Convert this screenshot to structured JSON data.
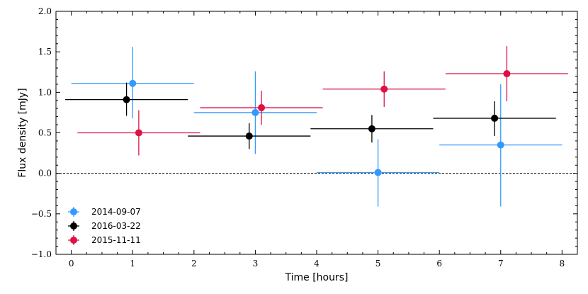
{
  "chart_data": {
    "type": "scatter",
    "title": "",
    "xlabel": "Time [hours]",
    "ylabel": "Flux density [mJy]",
    "xlim": [
      -0.25,
      8.25
    ],
    "ylim": [
      -1.0,
      2.0
    ],
    "xticks": [
      0,
      1,
      2,
      3,
      4,
      5,
      6,
      7,
      8
    ],
    "yticks": [
      -1.0,
      -0.5,
      0.0,
      0.5,
      1.0,
      1.5,
      2.0
    ],
    "xtick_labels": [
      "0",
      "1",
      "2",
      "3",
      "4",
      "5",
      "6",
      "7",
      "8"
    ],
    "ytick_labels": [
      "−1.0",
      "−0.5",
      "0.0",
      "0.5",
      "1.0",
      "1.5",
      "2.0"
    ],
    "zero_line": true,
    "grid": false,
    "legend_position": "lower-left",
    "series": [
      {
        "name": "2014-09-07",
        "color": "#3399ff",
        "points": [
          {
            "x": 1.0,
            "y": 1.11,
            "xlo": 0.0,
            "xhi": 2.0,
            "ylo": 0.68,
            "yhi": 1.56
          },
          {
            "x": 3.0,
            "y": 0.75,
            "xlo": 2.0,
            "xhi": 4.0,
            "ylo": 0.24,
            "yhi": 1.26
          },
          {
            "x": 5.0,
            "y": 0.01,
            "xlo": 4.0,
            "xhi": 6.0,
            "ylo": -0.41,
            "yhi": 0.42
          },
          {
            "x": 7.0,
            "y": 0.35,
            "xlo": 6.0,
            "xhi": 8.0,
            "ylo": -0.41,
            "yhi": 1.1
          }
        ]
      },
      {
        "name": "2016-03-22",
        "color": "#000000",
        "points": [
          {
            "x": 0.9,
            "y": 0.91,
            "xlo": -0.1,
            "xhi": 1.9,
            "ylo": 0.71,
            "yhi": 1.12
          },
          {
            "x": 2.9,
            "y": 0.46,
            "xlo": 1.9,
            "xhi": 3.9,
            "ylo": 0.3,
            "yhi": 0.62
          },
          {
            "x": 4.9,
            "y": 0.55,
            "xlo": 3.9,
            "xhi": 5.9,
            "ylo": 0.38,
            "yhi": 0.72
          },
          {
            "x": 6.9,
            "y": 0.68,
            "xlo": 5.9,
            "xhi": 7.9,
            "ylo": 0.46,
            "yhi": 0.89
          }
        ]
      },
      {
        "name": "2015-11-11",
        "color": "#dd1144",
        "points": [
          {
            "x": 1.1,
            "y": 0.5,
            "xlo": 0.1,
            "xhi": 2.1,
            "ylo": 0.22,
            "yhi": 0.78
          },
          {
            "x": 3.1,
            "y": 0.81,
            "xlo": 2.1,
            "xhi": 4.1,
            "ylo": 0.6,
            "yhi": 1.02
          },
          {
            "x": 5.1,
            "y": 1.04,
            "xlo": 4.1,
            "xhi": 6.1,
            "ylo": 0.82,
            "yhi": 1.26
          },
          {
            "x": 7.1,
            "y": 1.23,
            "xlo": 6.1,
            "xhi": 8.1,
            "ylo": 0.89,
            "yhi": 1.57
          }
        ]
      }
    ]
  }
}
